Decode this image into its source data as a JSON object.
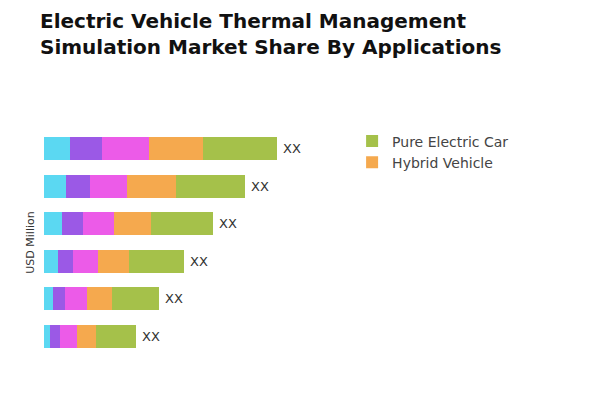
{
  "chart_data": {
    "type": "bar",
    "title": "Electric Vehicle Thermal Management\nSimulation Market Share By Applications",
    "y_label": "USD Million",
    "categories": [
      null,
      null,
      null,
      null,
      null,
      null
    ],
    "series": [
      {
        "color": "#5bd8f2",
        "values": [
          26,
          22,
          18,
          14,
          9,
          6
        ]
      },
      {
        "color": "#9b59e6",
        "values": [
          32,
          24,
          21,
          15,
          12,
          10
        ]
      },
      {
        "color": "#ec5be8",
        "values": [
          47,
          37,
          31,
          25,
          22,
          17
        ]
      },
      {
        "name": "Hybrid Vehicle",
        "color": "#f5a94e",
        "values": [
          54,
          49,
          37,
          31,
          25,
          19
        ]
      },
      {
        "name": "Pure Electric Car",
        "color": "#a5c14a",
        "values": [
          74,
          69,
          62,
          55,
          47,
          40
        ]
      }
    ],
    "total_labels": [
      "XX",
      "XX",
      "XX",
      "XX",
      "XX",
      "XX"
    ],
    "xlim": [
      0,
      300
    ],
    "orientation": "horizontal",
    "stacked": true,
    "grid": false,
    "tick_labels": false,
    "legend": "right"
  }
}
